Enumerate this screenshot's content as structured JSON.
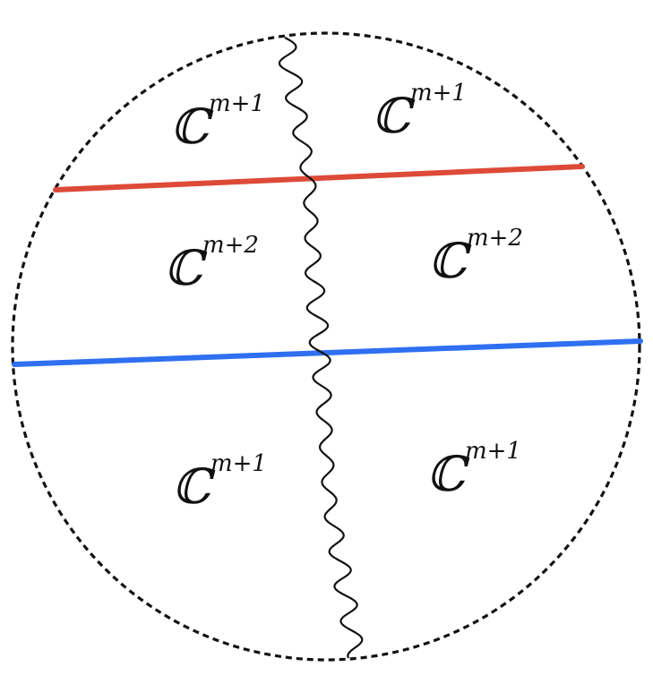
{
  "diagram": {
    "colors": {
      "boundary": "#111111",
      "upper_line": "#dd4a38",
      "lower_line": "#2f6ff0",
      "cut": "#111111"
    },
    "regions": [
      {
        "base": "ℂ",
        "exponent": "m+1"
      },
      {
        "base": "ℂ",
        "exponent": "m+1"
      },
      {
        "base": "ℂ",
        "exponent": "m+2"
      },
      {
        "base": "ℂ",
        "exponent": "m+2"
      },
      {
        "base": "ℂ",
        "exponent": "m+1"
      },
      {
        "base": "ℂ",
        "exponent": "m+1"
      }
    ]
  }
}
